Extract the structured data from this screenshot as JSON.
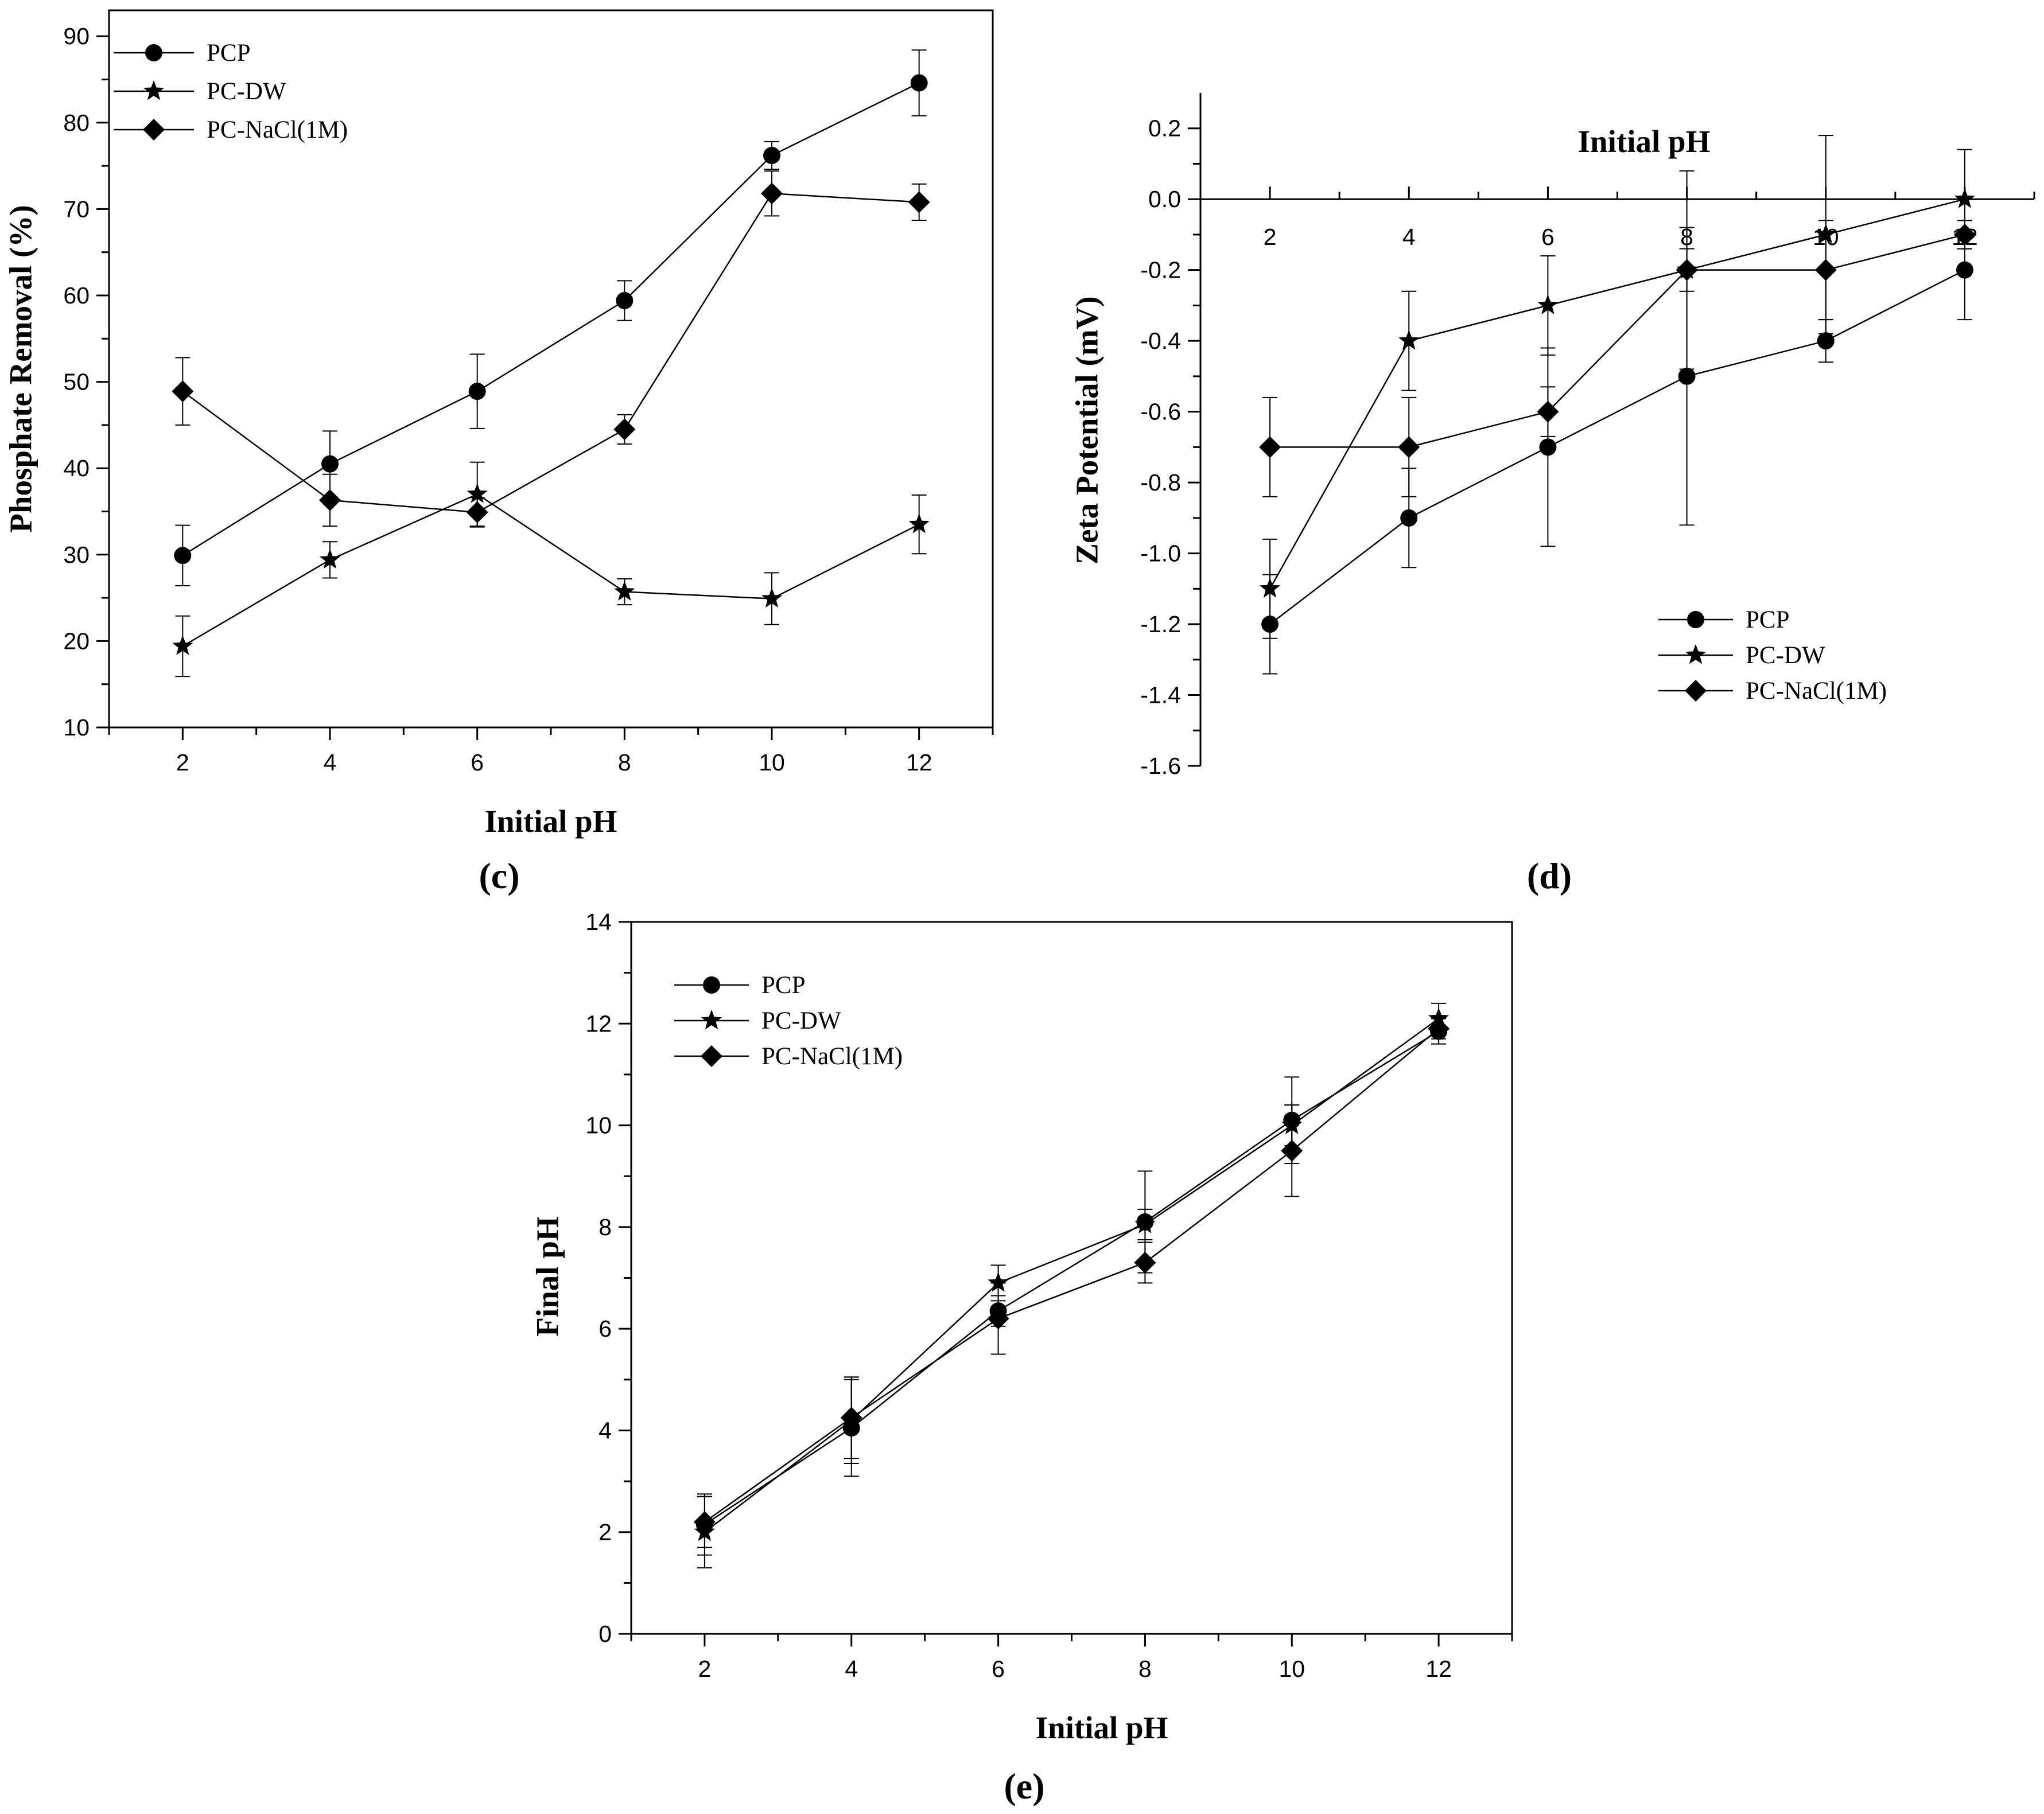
{
  "figure": {
    "panels": [
      "(c)",
      "(d)",
      "(e)"
    ]
  },
  "chart_data": [
    {
      "id": "c",
      "type": "line",
      "panel_label": "(c)",
      "title": "",
      "xlabel": "Initial pH",
      "ylabel": "Phosphate Removal (%)",
      "x": [
        2,
        4,
        6,
        8,
        10,
        12
      ],
      "xlim": [
        1,
        13
      ],
      "ylim": [
        10,
        93
      ],
      "xticks": [
        2,
        4,
        6,
        8,
        10,
        12
      ],
      "yticks": [
        10,
        20,
        30,
        40,
        50,
        60,
        70,
        80,
        90
      ],
      "legend_position": "top-left",
      "series": [
        {
          "name": "PCP",
          "marker": "circle",
          "values": [
            29.9,
            40.5,
            48.9,
            59.4,
            76.2,
            84.6
          ],
          "errors": [
            3.5,
            3.8,
            4.3,
            2.3,
            1.6,
            3.8
          ]
        },
        {
          "name": "PC-DW",
          "marker": "star",
          "values": [
            19.4,
            29.4,
            37.0,
            25.7,
            24.9,
            33.5
          ],
          "errors": [
            3.5,
            2.1,
            3.7,
            1.5,
            3.0,
            3.4
          ]
        },
        {
          "name": "PC-NaCl(1M)",
          "marker": "diamond",
          "values": [
            48.9,
            36.3,
            34.9,
            44.5,
            71.8,
            70.8
          ],
          "errors": [
            3.9,
            3.0,
            1.7,
            1.7,
            2.6,
            2.1
          ]
        }
      ]
    },
    {
      "id": "d",
      "type": "line",
      "panel_label": "(d)",
      "title": "",
      "xlabel": "Initial pH",
      "ylabel": "Zeta Potential (mV)",
      "x": [
        2,
        4,
        6,
        8,
        10,
        12
      ],
      "xlim": [
        1,
        13
      ],
      "ylim": [
        -1.6,
        0.3
      ],
      "xticks": [
        2,
        4,
        6,
        8,
        10,
        12
      ],
      "yticks": [
        0.2,
        0.0,
        -0.2,
        -0.4,
        -0.6,
        -0.8,
        -1.0,
        -1.2,
        -1.4,
        -1.6
      ],
      "ytick_labels": [
        "0.2",
        "0.0",
        "-0.2",
        "-0.4",
        "-0.6",
        "-0.8",
        "-1.0",
        "-1.2",
        "-1.4",
        "-1.6"
      ],
      "legend_position": "bottom-right",
      "series": [
        {
          "name": "PCP",
          "marker": "circle",
          "values": [
            -1.2,
            -0.9,
            -0.7,
            -0.5,
            -0.4,
            -0.2
          ],
          "errors": [
            0.14,
            0.14,
            0.28,
            0.42,
            0.06,
            0.14
          ]
        },
        {
          "name": "PC-DW",
          "marker": "star",
          "values": [
            -1.1,
            -0.4,
            -0.3,
            -0.2,
            -0.1,
            0.0
          ],
          "errors": [
            0.14,
            0.14,
            0.14,
            0.28,
            0.28,
            0.14
          ]
        },
        {
          "name": "PC-NaCl(1M)",
          "marker": "diamond",
          "values": [
            -0.7,
            -0.7,
            -0.6,
            -0.2,
            -0.2,
            -0.1
          ],
          "errors": [
            0.14,
            0.14,
            0.07,
            0.06,
            0.14,
            0.04
          ]
        }
      ]
    },
    {
      "id": "e",
      "type": "line",
      "panel_label": "(e)",
      "title": "",
      "xlabel": "Initial pH",
      "ylabel": "Final pH",
      "x": [
        2,
        4,
        6,
        8,
        10,
        12
      ],
      "xlim": [
        1,
        13
      ],
      "ylim": [
        0,
        14
      ],
      "xticks": [
        2,
        4,
        6,
        8,
        10,
        12
      ],
      "yticks": [
        0,
        2,
        4,
        6,
        8,
        10,
        12,
        14
      ],
      "legend_position": "top-left",
      "series": [
        {
          "name": "PCP",
          "marker": "circle",
          "values": [
            2.15,
            4.05,
            6.35,
            8.1,
            10.1,
            11.85
          ],
          "errors": [
            0.6,
            0.95,
            0.3,
            1.0,
            0.85,
            0.25
          ]
        },
        {
          "name": "PC-DW",
          "marker": "star",
          "values": [
            2.0,
            4.2,
            6.9,
            8.05,
            10.0,
            12.1
          ],
          "errors": [
            0.7,
            0.85,
            0.35,
            0.3,
            0.4,
            0.3
          ]
        },
        {
          "name": "PC-NaCl(1M)",
          "marker": "diamond",
          "values": [
            2.2,
            4.25,
            6.2,
            7.3,
            9.5,
            11.9
          ],
          "errors": [
            0.5,
            0.8,
            0.7,
            0.4,
            0.9,
            0.2
          ]
        }
      ]
    }
  ]
}
